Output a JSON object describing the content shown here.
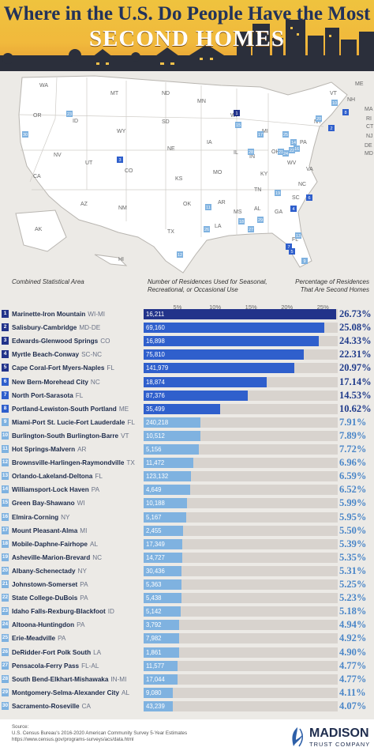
{
  "title_line1": "Where in the U.S. Do People Have the Most",
  "title_line2": "SECOND HOMES",
  "legend": {
    "area": "Combined Statistical Area",
    "count": "Number of Residences Used for Seasonal, Recreational, or Occasional Use",
    "pct": "Percentage of Residences That Are Second Homes"
  },
  "colors": {
    "dark": "#22338a",
    "mid": "#2f5fcc",
    "light": "#7fb2e0",
    "track": "#d8d3ce",
    "accent": "#1f3a8a"
  },
  "map_labels": [
    "WA",
    "OR",
    "CA",
    "NV",
    "ID",
    "MT",
    "WY",
    "UT",
    "AZ",
    "CO",
    "NM",
    "ND",
    "SD",
    "NE",
    "KS",
    "OK",
    "TX",
    "MN",
    "IA",
    "MO",
    "AR",
    "LA",
    "WI",
    "IL",
    "MI",
    "IN",
    "OH",
    "KY",
    "TN",
    "MS",
    "AL",
    "GA",
    "FL",
    "SC",
    "NC",
    "VA",
    "WV",
    "PA",
    "NY",
    "VT",
    "NH",
    "ME",
    "MA",
    "RI",
    "CT",
    "NJ",
    "DE",
    "MD",
    "AK",
    "HI"
  ],
  "chart_data": {
    "type": "bar",
    "xlim": [
      0,
      27
    ],
    "x_ticks": [
      "5%",
      "10%",
      "15%",
      "20%",
      "25%"
    ],
    "categories": [
      {
        "rank": "1",
        "name": "Marinette-Iron Mountain",
        "state": "WI-MI",
        "count": "16,211",
        "pct": 26.73,
        "pct_label": "26.73%"
      },
      {
        "rank": "2",
        "name": "Salisbury-Cambridge",
        "state": "MD-DE",
        "count": "69,160",
        "pct": 25.08,
        "pct_label": "25.08%"
      },
      {
        "rank": "3",
        "name": "Edwards-Glenwood Springs",
        "state": "CO",
        "count": "16,898",
        "pct": 24.33,
        "pct_label": "24.33%"
      },
      {
        "rank": "4",
        "name": "Myrtle Beach-Conway",
        "state": "SC-NC",
        "count": "75,810",
        "pct": 22.31,
        "pct_label": "22.31%"
      },
      {
        "rank": "5",
        "name": "Cape Coral-Fort Myers-Naples",
        "state": "FL",
        "count": "141,979",
        "pct": 20.97,
        "pct_label": "20.97%"
      },
      {
        "rank": "6",
        "name": "New Bern-Morehead City",
        "state": "NC",
        "count": "18,874",
        "pct": 17.14,
        "pct_label": "17.14%"
      },
      {
        "rank": "7",
        "name": "North Port-Sarasota",
        "state": "FL",
        "count": "87,376",
        "pct": 14.53,
        "pct_label": "14.53%"
      },
      {
        "rank": "8",
        "name": "Portland-Lewiston-South Portland",
        "state": "ME",
        "count": "35,499",
        "pct": 10.62,
        "pct_label": "10.62%"
      },
      {
        "rank": "9",
        "name": "Miami-Port St. Lucie-Fort Lauderdale",
        "state": "FL",
        "count": "240,218",
        "pct": 7.91,
        "pct_label": "7.91%"
      },
      {
        "rank": "10",
        "name": "Burlington-South Burlington-Barre",
        "state": "VT",
        "count": "10,512",
        "pct": 7.89,
        "pct_label": "7.89%"
      },
      {
        "rank": "11",
        "name": "Hot Springs-Malvern",
        "state": "AR",
        "count": "5,156",
        "pct": 7.72,
        "pct_label": "7.72%"
      },
      {
        "rank": "12",
        "name": "Brownsville-Harlingen-Raymondville",
        "state": "TX",
        "count": "11,472",
        "pct": 6.96,
        "pct_label": "6.96%"
      },
      {
        "rank": "13",
        "name": "Orlando-Lakeland-Deltona",
        "state": "FL",
        "count": "123,132",
        "pct": 6.59,
        "pct_label": "6.59%"
      },
      {
        "rank": "14",
        "name": "Williamsport-Lock Haven",
        "state": "PA",
        "count": "4,649",
        "pct": 6.52,
        "pct_label": "6.52%"
      },
      {
        "rank": "15",
        "name": "Green Bay-Shawano",
        "state": "WI",
        "count": "10,188",
        "pct": 5.99,
        "pct_label": "5.99%"
      },
      {
        "rank": "16",
        "name": "Elmira-Corning",
        "state": "NY",
        "count": "5,167",
        "pct": 5.95,
        "pct_label": "5.95%"
      },
      {
        "rank": "17",
        "name": "Mount Pleasant-Alma",
        "state": "MI",
        "count": "2,455",
        "pct": 5.5,
        "pct_label": "5.50%"
      },
      {
        "rank": "18",
        "name": "Mobile-Daphne-Fairhope",
        "state": "AL",
        "count": "17,349",
        "pct": 5.39,
        "pct_label": "5.39%"
      },
      {
        "rank": "19",
        "name": "Asheville-Marion-Brevard",
        "state": "NC",
        "count": "14,727",
        "pct": 5.35,
        "pct_label": "5.35%"
      },
      {
        "rank": "20",
        "name": "Albany-Schenectady",
        "state": "NY",
        "count": "30,436",
        "pct": 5.31,
        "pct_label": "5.31%"
      },
      {
        "rank": "21",
        "name": "Johnstown-Somerset",
        "state": "PA",
        "count": "5,363",
        "pct": 5.25,
        "pct_label": "5.25%"
      },
      {
        "rank": "22",
        "name": "State College-DuBois",
        "state": "PA",
        "count": "5,438",
        "pct": 5.23,
        "pct_label": "5.23%"
      },
      {
        "rank": "23",
        "name": "Idaho Falls-Rexburg-Blackfoot",
        "state": "ID",
        "count": "5,142",
        "pct": 5.18,
        "pct_label": "5.18%"
      },
      {
        "rank": "24",
        "name": "Altoona-Huntingdon",
        "state": "PA",
        "count": "3,792",
        "pct": 4.94,
        "pct_label": "4.94%"
      },
      {
        "rank": "25",
        "name": "Erie-Meadville",
        "state": "PA",
        "count": "7,982",
        "pct": 4.92,
        "pct_label": "4.92%"
      },
      {
        "rank": "26",
        "name": "DeRidder-Fort Polk South",
        "state": "LA",
        "count": "1,861",
        "pct": 4.9,
        "pct_label": "4.90%"
      },
      {
        "rank": "27",
        "name": "Pensacola-Ferry Pass",
        "state": "FL-AL",
        "count": "11,577",
        "pct": 4.77,
        "pct_label": "4.77%"
      },
      {
        "rank": "28",
        "name": "South Bend-Elkhart-Mishawaka",
        "state": "IN-MI",
        "count": "17,044",
        "pct": 4.77,
        "pct_label": "4.77%"
      },
      {
        "rank": "29",
        "name": "Montgomery-Selma-Alexander City",
        "state": "AL",
        "count": "9,080",
        "pct": 4.11,
        "pct_label": "4.11%"
      },
      {
        "rank": "30",
        "name": "Sacramento-Roseville",
        "state": "CA",
        "count": "43,239",
        "pct": 4.07,
        "pct_label": "4.07%"
      }
    ]
  },
  "source": {
    "heading": "Source:",
    "line1": "U.S. Census Bureau's 2016-2020 American Community Survey 5-Year Estimates",
    "line2": "https://www.census.gov/programs-surveys/acs/data.html"
  },
  "logo": {
    "name": "MADISON",
    "sub": "TRUST COMPANY"
  }
}
